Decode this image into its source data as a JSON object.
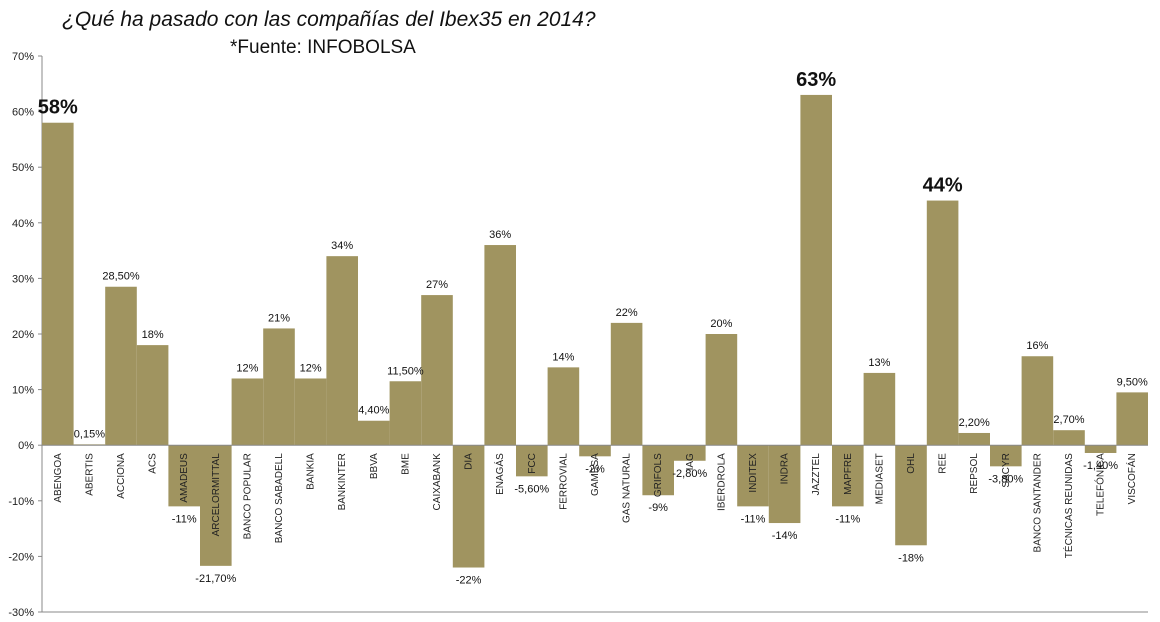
{
  "chart_data": {
    "type": "bar",
    "title": "¿Qué ha pasado  con las compañías del Ibex35 en 2014?",
    "subtitle": "*Fuente: INFOBOLSA",
    "xlabel": "",
    "ylabel": "",
    "ylim": [
      -30,
      70
    ],
    "yticks": [
      "-30%",
      "-20%",
      "-10%",
      "0%",
      "10%",
      "20%",
      "30%",
      "40%",
      "50%",
      "60%",
      "70%"
    ],
    "grid": false,
    "bar_color": "#a09460",
    "categories": [
      "ABENGOA",
      "ABERTIS",
      "ACCIONA",
      "ACS",
      "AMADEUS",
      "ARCELORMITTAL",
      "BANCO POPULAR",
      "BANCO SABADELL",
      "BANKIA",
      "BANKINTER",
      "BBVA",
      "BME",
      "CAIXABANK",
      "DIA",
      "ENAGÁS",
      "FCC",
      "FERROVIAL",
      "GAMESA",
      "GAS NATURAL",
      "GRIFOLS",
      "IAG",
      "IBERDROLA",
      "INDITEX",
      "INDRA",
      "JAZZTEL",
      "MAPFRE",
      "MEDIASET",
      "OHL",
      "REE",
      "REPSOL",
      "SACYR",
      "BANCO SANTANDER",
      "TÉCNICAS REUNIDAS",
      "TELEFÓNICA",
      "VISCOFÁN"
    ],
    "values": [
      58,
      0.15,
      28.5,
      18,
      -11,
      -21.7,
      12,
      21,
      12,
      34,
      4.4,
      11.5,
      27,
      -22,
      36,
      -5.6,
      14,
      -2,
      22,
      -9,
      -2.8,
      20,
      -11,
      -14,
      63,
      -11,
      13,
      -18,
      44,
      2.2,
      -3.8,
      16,
      2.7,
      -1.4,
      9.5
    ],
    "data_labels": [
      "58%",
      "0,15%",
      "28,50%",
      "18%",
      "-11%",
      "-21,70%",
      "12%",
      "21%",
      "12%",
      "34%",
      "4,40%",
      "11,50%",
      "27%",
      "-22%",
      "36%",
      "-5,60%",
      "14%",
      "-2%",
      "22%",
      "-9%",
      "-2,80%",
      "20%",
      "-11%",
      "-14%",
      "63%",
      "-11%",
      "13%",
      "-18%",
      "44%",
      "2,20%",
      "-3,80%",
      "16%",
      "2,70%",
      "-1,40%",
      "9,50%"
    ],
    "highlight_labels": [
      "ABENGOA",
      "JAZZTEL",
      "REE"
    ]
  }
}
